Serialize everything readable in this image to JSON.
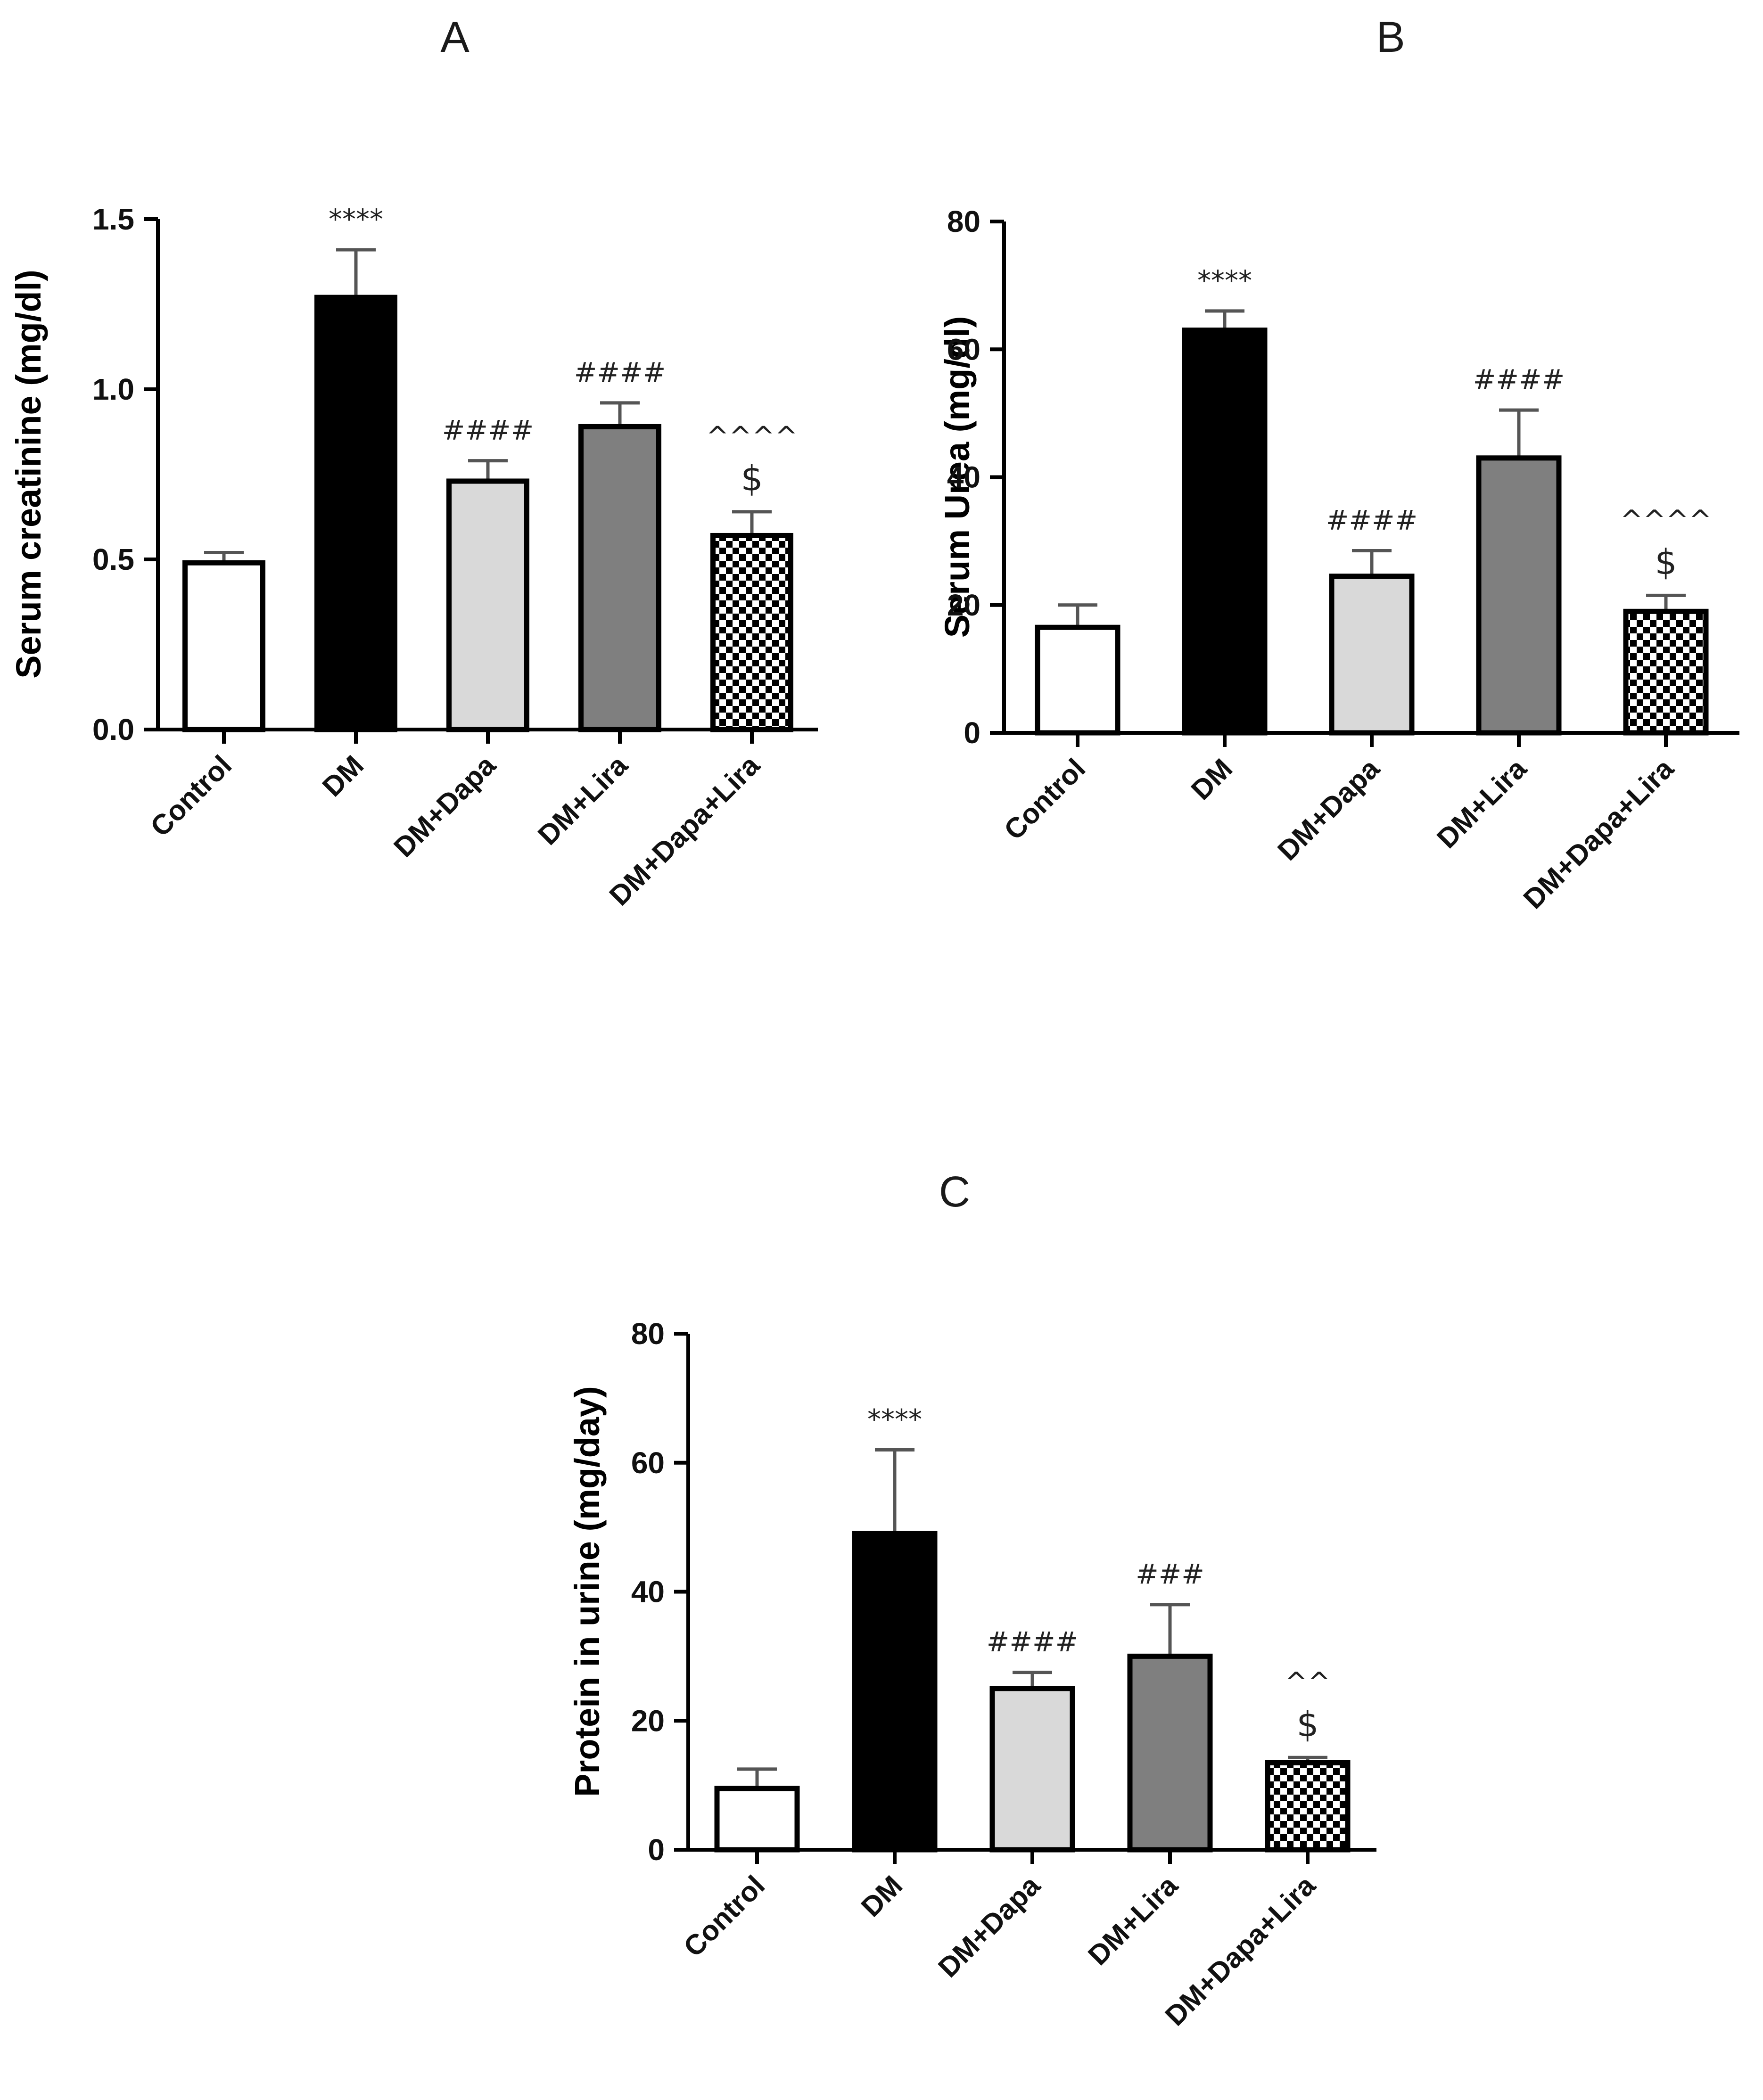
{
  "chart_data": [
    {
      "type": "bar",
      "panel": "A",
      "categories": [
        "Control",
        "DM",
        "DM+Dapa",
        "DM+Lira",
        "DM+Dapa+Lira"
      ],
      "values": [
        0.49,
        1.27,
        0.73,
        0.89,
        0.57
      ],
      "errors": [
        0.03,
        0.14,
        0.06,
        0.07,
        0.07
      ],
      "ylabel": "Serum creatinine (mg/dl)",
      "xlabel": "",
      "ylim": [
        0,
        1.5
      ],
      "yticks": [
        "0.0",
        "0.5",
        "1.0",
        "1.5"
      ],
      "annotations": [
        {
          "category": "DM",
          "lines": [
            "****"
          ]
        },
        {
          "category": "DM+Dapa",
          "lines": [
            "####"
          ]
        },
        {
          "category": "DM+Lira",
          "lines": [
            "####"
          ]
        },
        {
          "category": "DM+Dapa+Lira",
          "lines": [
            "^^^^",
            "$"
          ]
        }
      ]
    },
    {
      "type": "bar",
      "panel": "B",
      "categories": [
        "Control",
        "DM",
        "DM+Dapa",
        "DM+Lira",
        "DM+Dapa+Lira"
      ],
      "values": [
        16.5,
        63,
        24.5,
        43,
        19
      ],
      "errors": [
        3.5,
        3,
        4,
        7.5,
        2.5
      ],
      "ylabel": "Serum Urea (mg/dl)",
      "xlabel": "",
      "ylim": [
        0,
        80
      ],
      "yticks": [
        "0",
        "20",
        "40",
        "60",
        "80"
      ],
      "annotations": [
        {
          "category": "DM",
          "lines": [
            "****"
          ]
        },
        {
          "category": "DM+Dapa",
          "lines": [
            "####"
          ]
        },
        {
          "category": "DM+Lira",
          "lines": [
            "####"
          ]
        },
        {
          "category": "DM+Dapa+Lira",
          "lines": [
            "^^^^",
            "$"
          ]
        }
      ]
    },
    {
      "type": "bar",
      "panel": "C",
      "categories": [
        "Control",
        "DM",
        "DM+Dapa",
        "DM+Lira",
        "DM+Dapa+Lira"
      ],
      "values": [
        9.5,
        49,
        25,
        30,
        13.5
      ],
      "errors": [
        3,
        13,
        2.5,
        8,
        0.8
      ],
      "ylabel": "Protein in urine (mg/day)",
      "xlabel": "",
      "ylim": [
        0,
        80
      ],
      "yticks": [
        "0",
        "20",
        "40",
        "60",
        "80"
      ],
      "annotations": [
        {
          "category": "DM",
          "lines": [
            "****"
          ]
        },
        {
          "category": "DM+Dapa",
          "lines": [
            "####"
          ]
        },
        {
          "category": "DM+Lira",
          "lines": [
            "###"
          ]
        },
        {
          "category": "DM+Dapa+Lira",
          "lines": [
            "^^",
            "$"
          ]
        }
      ]
    }
  ],
  "colors": {
    "control": "#ffffff",
    "dm": "#000000",
    "dm_dapa": "#d9d9d9",
    "dm_lira": "#7f7f7f",
    "checker_dark": "#000000",
    "checker_light": "#ffffff",
    "axis": "#000000",
    "error_bar": "#555555"
  }
}
